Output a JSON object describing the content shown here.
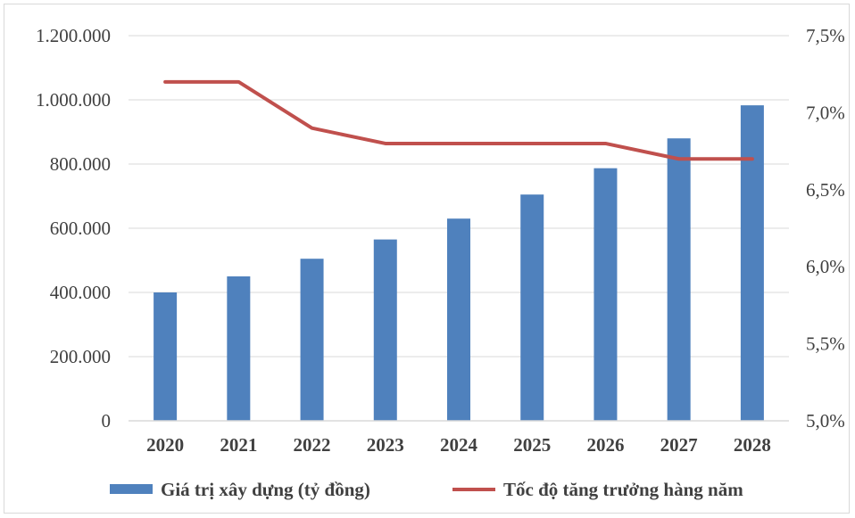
{
  "chart_data": {
    "type": "bar",
    "categories": [
      "2020",
      "2021",
      "2022",
      "2023",
      "2024",
      "2025",
      "2026",
      "2027",
      "2028"
    ],
    "series": [
      {
        "name": "Giá trị xây dựng (tỷ đồng)",
        "type": "bar",
        "axis": "left",
        "color": "#4f81bd",
        "values": [
          400000,
          450000,
          505000,
          565000,
          630000,
          705000,
          787000,
          880000,
          983000
        ]
      },
      {
        "name": "Tốc độ tăng trưởng hàng năm",
        "type": "line",
        "axis": "right",
        "color": "#c0504d",
        "values": [
          7.2,
          7.2,
          6.9,
          6.8,
          6.8,
          6.8,
          6.8,
          6.7,
          6.7
        ]
      }
    ],
    "y_left": {
      "ylim": [
        0,
        1200000
      ],
      "ticks": [
        0,
        200000,
        400000,
        600000,
        800000,
        1000000,
        1200000
      ],
      "tick_labels": [
        "0",
        "200.000",
        "400.000",
        "600.000",
        "800.000",
        "1.000.000",
        "1.200.000"
      ]
    },
    "y_right": {
      "ylim": [
        5.0,
        7.5
      ],
      "ticks": [
        5.0,
        5.5,
        6.0,
        6.5,
        7.0,
        7.5
      ],
      "tick_labels": [
        "5,0%",
        "5,5%",
        "6,0%",
        "6,5%",
        "7,0%",
        "7,5%"
      ]
    },
    "grid": true,
    "legend": "bottom"
  }
}
